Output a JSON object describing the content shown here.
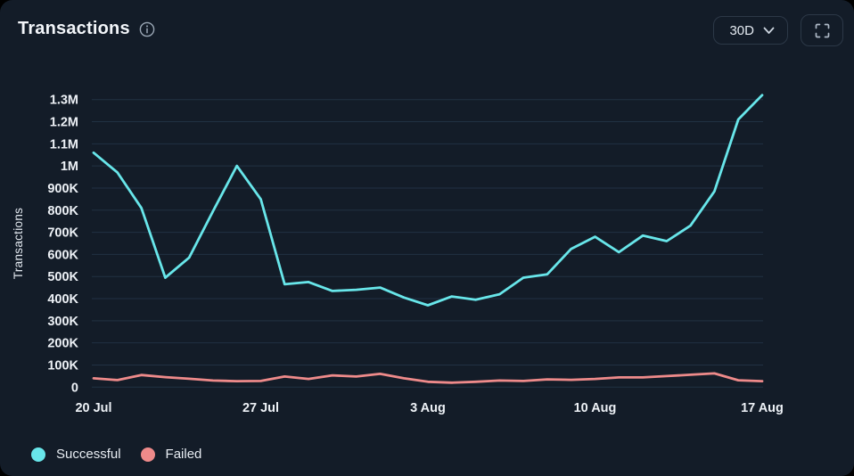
{
  "header": {
    "title": "Transactions",
    "range_selector": {
      "value": "30D"
    }
  },
  "legend": [
    {
      "label": "Successful",
      "color": "#68e6ea"
    },
    {
      "label": "Failed",
      "color": "#ee8a8a"
    }
  ],
  "colors": {
    "background": "#131c28",
    "grid": "#2e4459",
    "tick_text": "#edf1f6",
    "muted_icon": "#9aa7b5",
    "successful": "#68e6ea",
    "failed": "#ee8a8a"
  },
  "chart_data": {
    "type": "line",
    "title": "Transactions",
    "ylabel": "Transactions",
    "x_unit": "day",
    "grid": "horizontal",
    "legend_position": "bottom-left",
    "x_tick_labels": [
      "20 Jul",
      "27 Jul",
      "3 Aug",
      "10 Aug",
      "17 Aug"
    ],
    "x_tick_indices": [
      0,
      7,
      14,
      21,
      28
    ],
    "y_ticks": [
      0,
      100000,
      200000,
      300000,
      400000,
      500000,
      600000,
      700000,
      800000,
      900000,
      1000000,
      1100000,
      1200000,
      1300000
    ],
    "y_tick_labels": [
      "0",
      "100K",
      "200K",
      "300K",
      "400K",
      "500K",
      "600K",
      "700K",
      "800K",
      "900K",
      "1M",
      "1.1M",
      "1.2M",
      "1.3M"
    ],
    "ylim": [
      0,
      1350000
    ],
    "series": [
      {
        "name": "Successful",
        "color": "#68e6ea",
        "values": [
          1060000,
          970000,
          810000,
          495000,
          585000,
          795000,
          1000000,
          850000,
          465000,
          475000,
          435000,
          440000,
          450000,
          405000,
          370000,
          410000,
          395000,
          420000,
          495000,
          510000,
          625000,
          680000,
          610000,
          685000,
          660000,
          730000,
          885000,
          1210000,
          1320000
        ]
      },
      {
        "name": "Failed",
        "color": "#ee8a8a",
        "values": [
          40000,
          32000,
          55000,
          45000,
          38000,
          30000,
          27000,
          28000,
          48000,
          37000,
          53000,
          48000,
          60000,
          40000,
          24000,
          20000,
          24000,
          30000,
          28000,
          35000,
          33000,
          37000,
          44000,
          44000,
          50000,
          56000,
          62000,
          31000,
          27000
        ]
      }
    ]
  }
}
